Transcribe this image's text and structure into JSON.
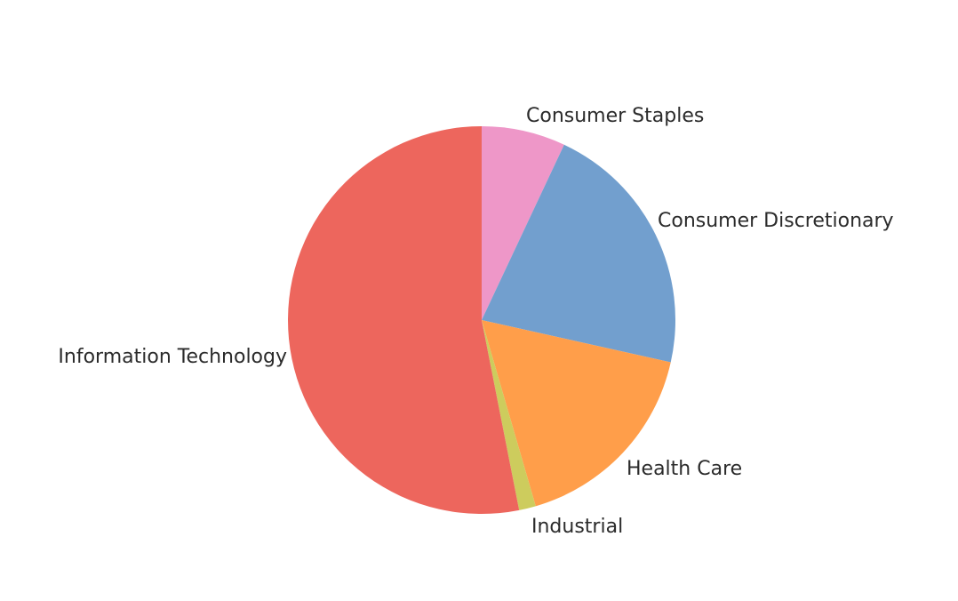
{
  "chart_data": {
    "type": "pie",
    "categories": [
      "Consumer Staples",
      "Consumer Discretionary",
      "Health Care",
      "Industrial",
      "Information Technology"
    ],
    "values": [
      7.0,
      21.5,
      17.0,
      1.4,
      53.1
    ],
    "colors": [
      "#EE97C8",
      "#729FCE",
      "#FF9E4A",
      "#CDCC5D",
      "#ED665D"
    ],
    "title": "",
    "legend": "none",
    "start": "top",
    "direction": "clockwise"
  }
}
